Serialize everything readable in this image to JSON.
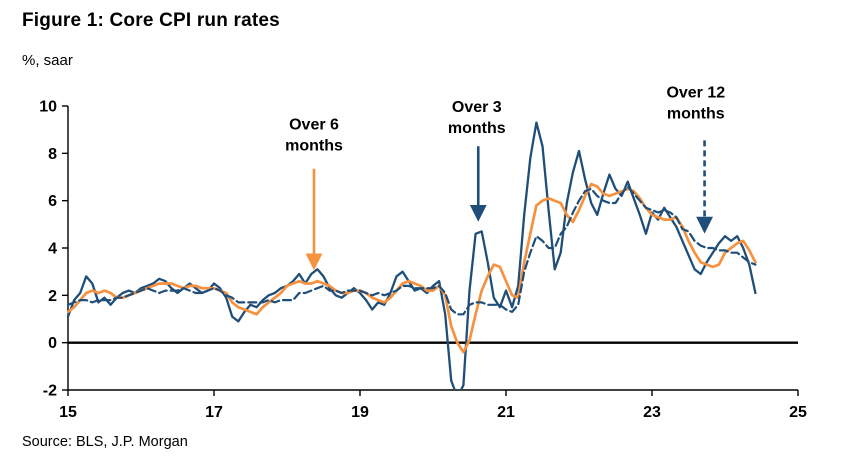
{
  "title": "Figure 1: Core CPI run rates",
  "y_unit_label": "%, saar",
  "source": "Source: BLS, J.P. Morgan",
  "colors": {
    "navy": "#1F4E79",
    "orange": "#F6913E",
    "axis": "#000000",
    "text": "#000000"
  },
  "chart_data": {
    "type": "line",
    "title": "Figure 1: Core CPI run rates",
    "ylabel": "%, saar",
    "xlim": [
      15,
      25
    ],
    "ylim": [
      -2,
      10
    ],
    "xticks": [
      15,
      17,
      19,
      21,
      23,
      25
    ],
    "yticks": [
      10,
      8,
      6,
      4,
      2,
      0,
      -2
    ],
    "grid": false,
    "zero_line": true,
    "x": {
      "start": 15.0,
      "step": 0.0833333,
      "points": 114,
      "note": "monthly, Jan 2015 - Jun 2024, x in calendar years (15 = 2015)"
    },
    "series": [
      {
        "id": "over-3-months",
        "name": "Over 3 months",
        "style": "solid",
        "color": "#1F4E79",
        "values": [
          1.1,
          1.8,
          2.1,
          2.8,
          2.5,
          1.7,
          1.9,
          1.6,
          1.9,
          2.1,
          2.2,
          2.1,
          2.3,
          2.4,
          2.5,
          2.7,
          2.6,
          2.3,
          2.1,
          2.3,
          2.5,
          2.3,
          2.1,
          2.2,
          2.5,
          2.3,
          1.9,
          1.1,
          0.9,
          1.3,
          1.6,
          1.5,
          1.8,
          2.0,
          2.1,
          2.3,
          2.4,
          2.6,
          2.9,
          2.5,
          2.9,
          3.1,
          2.8,
          2.3,
          2.0,
          1.9,
          2.1,
          2.3,
          2.1,
          1.8,
          1.4,
          1.7,
          1.6,
          2.1,
          2.8,
          3.0,
          2.6,
          2.2,
          2.3,
          2.1,
          2.4,
          2.6,
          1.2,
          -1.6,
          -2.3,
          -1.8,
          2.2,
          4.6,
          4.7,
          3.4,
          1.9,
          1.5,
          2.2,
          1.5,
          2.4,
          5.4,
          7.8,
          9.3,
          8.3,
          5.6,
          3.1,
          3.8,
          5.9,
          7.2,
          8.1,
          6.9,
          5.9,
          5.4,
          6.3,
          7.1,
          6.5,
          6.2,
          6.8,
          6.1,
          5.4,
          4.6,
          5.5,
          5.2,
          5.7,
          5.3,
          4.9,
          4.3,
          3.7,
          3.1,
          2.9,
          3.4,
          3.8,
          4.2,
          4.5,
          4.3,
          4.5,
          4.0,
          3.3,
          2.1
        ]
      },
      {
        "id": "over-6-months",
        "name": "Over 6 months",
        "style": "solid",
        "color": "#F6913E",
        "values": [
          1.3,
          1.5,
          1.8,
          2.1,
          2.2,
          2.1,
          2.2,
          2.1,
          1.9,
          1.9,
          2.0,
          2.1,
          2.2,
          2.3,
          2.4,
          2.5,
          2.5,
          2.5,
          2.4,
          2.3,
          2.4,
          2.4,
          2.3,
          2.3,
          2.3,
          2.2,
          2.1,
          1.7,
          1.5,
          1.4,
          1.3,
          1.2,
          1.5,
          1.7,
          1.9,
          2.1,
          2.4,
          2.5,
          2.6,
          2.5,
          2.5,
          2.6,
          2.5,
          2.4,
          2.2,
          2.1,
          2.1,
          2.2,
          2.2,
          2.1,
          1.9,
          1.8,
          1.7,
          1.9,
          2.2,
          2.5,
          2.6,
          2.5,
          2.4,
          2.2,
          2.2,
          2.4,
          2.0,
          0.7,
          0.0,
          -0.4,
          0.1,
          1.2,
          2.2,
          2.8,
          3.3,
          3.2,
          2.6,
          2.0,
          1.9,
          3.4,
          4.6,
          5.8,
          6.0,
          6.1,
          6.0,
          5.9,
          5.4,
          5.1,
          5.6,
          6.2,
          6.7,
          6.6,
          6.3,
          6.2,
          6.3,
          6.4,
          6.5,
          6.4,
          6.1,
          5.7,
          5.4,
          5.3,
          5.2,
          5.2,
          5.3,
          4.9,
          4.3,
          3.8,
          3.4,
          3.3,
          3.2,
          3.3,
          3.8,
          4.0,
          4.2,
          4.3,
          3.9,
          3.4
        ]
      },
      {
        "id": "over-12-months",
        "name": "Over 12 months",
        "style": "dashed",
        "color": "#1F4E79",
        "values": [
          1.6,
          1.7,
          1.8,
          1.8,
          1.7,
          1.8,
          1.8,
          1.8,
          1.9,
          1.9,
          2.0,
          2.1,
          2.2,
          2.3,
          2.2,
          2.1,
          2.2,
          2.2,
          2.2,
          2.3,
          2.2,
          2.1,
          2.1,
          2.2,
          2.3,
          2.2,
          2.0,
          1.9,
          1.7,
          1.7,
          1.7,
          1.7,
          1.7,
          1.8,
          1.7,
          1.8,
          1.8,
          1.8,
          2.1,
          2.1,
          2.2,
          2.3,
          2.4,
          2.2,
          2.2,
          2.1,
          2.2,
          2.2,
          2.2,
          2.1,
          2.0,
          2.1,
          2.0,
          2.1,
          2.2,
          2.4,
          2.4,
          2.3,
          2.3,
          2.3,
          2.3,
          2.4,
          2.1,
          1.4,
          1.2,
          1.2,
          1.6,
          1.7,
          1.7,
          1.6,
          1.6,
          1.6,
          1.4,
          1.3,
          1.6,
          3.0,
          3.8,
          4.5,
          4.3,
          4.0,
          4.0,
          4.6,
          4.9,
          5.5,
          6.0,
          6.4,
          6.5,
          6.2,
          6.0,
          5.9,
          5.9,
          6.3,
          6.6,
          6.3,
          6.0,
          5.7,
          5.6,
          5.5,
          5.6,
          5.5,
          5.3,
          4.8,
          4.7,
          4.3,
          4.1,
          4.0,
          4.0,
          3.9,
          3.9,
          3.8,
          3.8,
          3.6,
          3.4,
          3.3
        ]
      }
    ],
    "annotations": [
      {
        "id": "over-6-months",
        "lines": [
          "Over 6",
          "months"
        ],
        "text_x": 18.37,
        "text_y": 9.0,
        "arrow": {
          "x": 18.37,
          "y_from": 7.35,
          "y_to": 3.2,
          "color": "#F6913E",
          "dashed": false
        }
      },
      {
        "id": "over-3-months",
        "lines": [
          "Over 3",
          "months"
        ],
        "text_x": 20.6,
        "text_y": 9.75,
        "arrow": {
          "x": 20.62,
          "y_from": 8.3,
          "y_to": 5.25,
          "color": "#1F4E79",
          "dashed": false
        }
      },
      {
        "id": "over-12-months",
        "lines": [
          "Over 12",
          "months"
        ],
        "text_x": 23.6,
        "text_y": 10.35,
        "arrow": {
          "x": 23.72,
          "y_from": 8.55,
          "y_to": 4.75,
          "color": "#1F4E79",
          "dashed": true
        }
      }
    ]
  }
}
